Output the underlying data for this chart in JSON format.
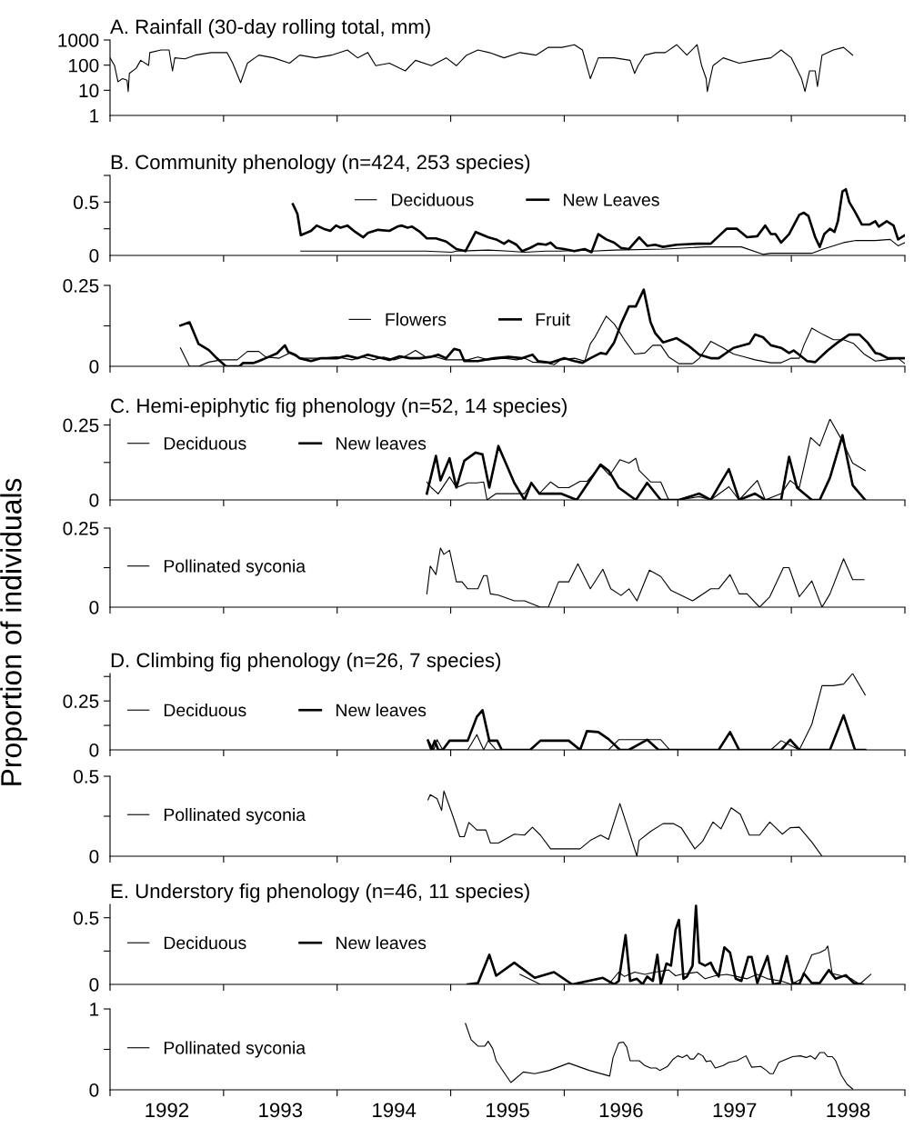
{
  "chart_data": [
    {
      "type": "line",
      "title": "A. Rainfall (30-day rolling total, mm)",
      "log": true,
      "ylim": [
        1,
        1000
      ],
      "yticks": [
        1,
        10,
        100,
        1000
      ],
      "xlim": [
        1992,
        1999
      ],
      "tick_labels": "y",
      "xticks": [
        {
          "value": 1992,
          "label": null
        },
        {
          "value": 1993,
          "label": null
        },
        {
          "value": 1994,
          "label": null
        },
        {
          "value": 1995,
          "label": null
        },
        {
          "value": 1996,
          "label": null
        },
        {
          "value": 1997,
          "label": null
        },
        {
          "value": 1998,
          "label": null
        },
        {
          "value": 1999,
          "label": null
        }
      ],
      "series": [
        {
          "color": "#000000",
          "x": [
            1992.0,
            1992.04,
            1992.07,
            1992.11,
            1992.15,
            1992.16,
            1992.17,
            1992.23,
            1992.27,
            1992.34,
            1992.35,
            1992.45,
            1992.52,
            1992.55,
            1992.57,
            1992.66,
            1992.75,
            1992.89,
            1993.03,
            1993.08,
            1993.15,
            1993.21,
            1993.31,
            1993.44,
            1993.58,
            1993.67,
            1993.81,
            1993.95,
            1994.09,
            1994.18,
            1994.27,
            1994.34,
            1994.46,
            1994.6,
            1994.69,
            1994.83,
            1994.96,
            1995.05,
            1995.14,
            1995.24,
            1995.34,
            1995.47,
            1995.61,
            1995.75,
            1995.86,
            1995.98,
            1996.09,
            1996.16,
            1996.23,
            1996.3,
            1996.44,
            1996.58,
            1996.62,
            1996.65,
            1996.71,
            1996.8,
            1996.89,
            1996.99,
            1997.08,
            1997.17,
            1997.21,
            1997.25,
            1997.26,
            1997.31,
            1997.4,
            1997.54,
            1997.68,
            1997.82,
            1997.91,
            1998.0,
            1998.09,
            1998.12,
            1998.16,
            1998.21,
            1998.23,
            1998.27,
            1998.37,
            1998.46,
            1998.54
          ],
          "values": [
            195,
            95,
            22,
            29,
            25,
            9,
            47,
            75,
            155,
            98,
            316,
            400,
            400,
            59,
            195,
            178,
            250,
            316,
            316,
            120,
            20,
            120,
            250,
            195,
            120,
            250,
            195,
            250,
            400,
            195,
            316,
            95,
            120,
            59,
            155,
            95,
            195,
            95,
            250,
            400,
            316,
            195,
            316,
            250,
            510,
            510,
            650,
            400,
            29,
            195,
            195,
            155,
            47,
            95,
            250,
            316,
            316,
            650,
            250,
            650,
            95,
            29,
            9,
            95,
            195,
            120,
            155,
            195,
            400,
            195,
            29,
            9,
            59,
            59,
            14,
            250,
            400,
            510,
            250
          ]
        }
      ]
    },
    {
      "type": "line",
      "title": "B. Community phenology (n=424, 253 species)",
      "ylim": [
        0,
        0.75
      ],
      "yticks": [
        0,
        {
          "value": 0.25,
          "label": null
        },
        0.5,
        {
          "value": 0.75,
          "label": null
        }
      ],
      "xlim": [
        1992,
        1999
      ],
      "tick_labels": "y",
      "legend": "top",
      "xticks": [
        {
          "value": 1992,
          "label": null
        },
        {
          "value": 1993,
          "label": null
        },
        {
          "value": 1994,
          "label": null
        },
        {
          "value": 1995,
          "label": null
        },
        {
          "value": 1996,
          "label": null
        },
        {
          "value": 1997,
          "label": null
        },
        {
          "value": 1998,
          "label": null
        },
        {
          "value": 1999,
          "label": null
        }
      ],
      "series": [
        {
          "name": "Deciduous",
          "color": "#000000",
          "x": [
            1993.68,
            1994.13,
            1994.59,
            1994.78,
            1995.01,
            1995.05,
            1995.33,
            1995.51,
            1995.65,
            1995.84,
            1995.97,
            1996.16,
            1996.25,
            1996.44,
            1996.89,
            1997.24,
            1997.56,
            1997.75,
            1997.82,
            1997.95,
            1998.18,
            1998.28,
            1998.37,
            1998.46,
            1998.57,
            1998.74,
            1998.87,
            1998.94,
            1999.0
          ],
          "values": [
            0.04,
            0.04,
            0.04,
            0.04,
            0.03,
            0.04,
            0.05,
            0.04,
            0.03,
            0.04,
            0.04,
            0.05,
            0.04,
            0.05,
            0.06,
            0.08,
            0.08,
            0.01,
            0.02,
            0.02,
            0.02,
            0.06,
            0.09,
            0.12,
            0.14,
            0.14,
            0.15,
            0.09,
            0.12
          ]
        },
        {
          "name": "New Leaves",
          "color": "#000000",
          "x": [
            1993.61,
            1993.65,
            1993.68,
            1993.77,
            1993.82,
            1993.88,
            1993.94,
            1993.99,
            1994.03,
            1994.09,
            1994.16,
            1994.23,
            1994.27,
            1994.36,
            1994.46,
            1994.53,
            1994.57,
            1994.62,
            1994.66,
            1994.73,
            1994.79,
            1994.87,
            1994.96,
            1995.05,
            1995.13,
            1995.22,
            1995.33,
            1995.4,
            1995.47,
            1995.51,
            1995.58,
            1995.63,
            1995.7,
            1995.77,
            1995.84,
            1995.88,
            1995.93,
            1996.0,
            1996.09,
            1996.18,
            1996.24,
            1996.3,
            1996.37,
            1996.44,
            1996.5,
            1996.57,
            1996.66,
            1996.73,
            1996.8,
            1996.87,
            1996.99,
            1997.17,
            1997.29,
            1997.36,
            1997.43,
            1997.52,
            1997.61,
            1997.7,
            1997.77,
            1997.82,
            1997.86,
            1997.91,
            1997.98,
            1998.07,
            1998.11,
            1998.15,
            1998.21,
            1998.25,
            1998.29,
            1998.34,
            1998.38,
            1998.41,
            1998.45,
            1998.48,
            1998.51,
            1998.56,
            1998.62,
            1998.69,
            1998.74,
            1998.77,
            1998.84,
            1998.9,
            1998.94,
            1999.0
          ],
          "values": [
            0.48,
            0.39,
            0.19,
            0.23,
            0.28,
            0.25,
            0.23,
            0.28,
            0.26,
            0.28,
            0.22,
            0.17,
            0.21,
            0.24,
            0.23,
            0.27,
            0.28,
            0.26,
            0.27,
            0.22,
            0.16,
            0.16,
            0.13,
            0.06,
            0.04,
            0.22,
            0.17,
            0.15,
            0.11,
            0.14,
            0.1,
            0.04,
            0.07,
            0.11,
            0.1,
            0.12,
            0.07,
            0.06,
            0.04,
            0.06,
            0.03,
            0.2,
            0.15,
            0.12,
            0.07,
            0.06,
            0.17,
            0.09,
            0.1,
            0.08,
            0.1,
            0.11,
            0.11,
            0.18,
            0.25,
            0.25,
            0.17,
            0.18,
            0.28,
            0.2,
            0.2,
            0.12,
            0.2,
            0.38,
            0.4,
            0.37,
            0.17,
            0.08,
            0.2,
            0.25,
            0.22,
            0.32,
            0.6,
            0.62,
            0.5,
            0.41,
            0.29,
            0.29,
            0.32,
            0.27,
            0.32,
            0.28,
            0.15,
            0.19
          ]
        }
      ]
    },
    {
      "type": "line",
      "ylim": [
        0,
        0.25
      ],
      "yticks": [
        0,
        {
          "value": 0.125,
          "label": null
        },
        0.25
      ],
      "xlim": [
        1992,
        1999
      ],
      "tick_labels": "y",
      "legend": "center",
      "xticks": [
        {
          "value": 1992,
          "label": null
        },
        {
          "value": 1993,
          "label": null
        },
        {
          "value": 1994,
          "label": null
        },
        {
          "value": 1995,
          "label": null
        },
        {
          "value": 1996,
          "label": null
        },
        {
          "value": 1997,
          "label": null
        },
        {
          "value": 1998,
          "label": null
        },
        {
          "value": 1999,
          "label": null
        }
      ],
      "series": [
        {
          "name": "Flowers",
          "color": "#000000",
          "x": [
            1992.62,
            1992.7,
            1992.78,
            1992.87,
            1992.98,
            1993.12,
            1993.21,
            1993.31,
            1993.37,
            1993.49,
            1993.58,
            1993.67,
            1993.77,
            1993.86,
            1994.0,
            1994.13,
            1994.23,
            1994.32,
            1994.41,
            1994.5,
            1994.59,
            1994.69,
            1994.78,
            1994.87,
            1994.96,
            1995.05,
            1995.15,
            1995.24,
            1995.33,
            1995.47,
            1995.58,
            1995.65,
            1995.72,
            1995.84,
            1995.91,
            1995.97,
            1996.09,
            1996.18,
            1996.23,
            1996.27,
            1996.37,
            1996.44,
            1996.53,
            1996.62,
            1996.71,
            1996.78,
            1996.85,
            1996.92,
            1997.01,
            1997.13,
            1997.19,
            1997.29,
            1997.4,
            1997.49,
            1997.59,
            1997.68,
            1997.82,
            1997.91,
            1998.0,
            1998.07,
            1998.11,
            1998.18,
            1998.28,
            1998.37,
            1998.46,
            1998.55,
            1998.64,
            1998.74,
            1998.83,
            1998.94,
            1999.0
          ],
          "values": [
            0.057,
            0,
            0,
            0.013,
            0.02,
            0.02,
            0.046,
            0.046,
            0.029,
            0.025,
            0.041,
            0.025,
            0.025,
            0.025,
            0.029,
            0.02,
            0.029,
            0.02,
            0.029,
            0.02,
            0.029,
            0.049,
            0.029,
            0.029,
            0.02,
            0.02,
            0.02,
            0.029,
            0.02,
            0.025,
            0.02,
            0.025,
            0.013,
            0.011,
            0.005,
            0.02,
            0.025,
            0.016,
            0.07,
            0.09,
            0.155,
            0.131,
            0.082,
            0.038,
            0.041,
            0.065,
            0.065,
            0.029,
            0.008,
            0.008,
            0.025,
            0.077,
            0.057,
            0.038,
            0.029,
            0.02,
            0.011,
            0.011,
            0.025,
            0.025,
            0.065,
            0.118,
            0.098,
            0.082,
            0.082,
            0.07,
            0.038,
            0.016,
            0.02,
            0.025,
            0.008
          ]
        },
        {
          "name": "Fruit",
          "color": "#000000",
          "x": [
            1992.62,
            1992.7,
            1992.78,
            1992.87,
            1992.94,
            1993.02,
            1993.14,
            1993.17,
            1993.26,
            1993.31,
            1993.37,
            1993.47,
            1993.54,
            1993.57,
            1993.63,
            1993.67,
            1993.77,
            1993.86,
            1994.0,
            1994.09,
            1994.18,
            1994.27,
            1994.36,
            1994.46,
            1994.55,
            1994.64,
            1994.73,
            1994.82,
            1994.89,
            1994.96,
            1995.03,
            1995.08,
            1995.12,
            1995.24,
            1995.38,
            1995.51,
            1995.63,
            1995.72,
            1995.77,
            1995.88,
            1996.0,
            1996.09,
            1996.16,
            1996.23,
            1996.32,
            1996.37,
            1996.44,
            1996.5,
            1996.57,
            1996.63,
            1996.7,
            1996.76,
            1996.8,
            1996.87,
            1996.99,
            1997.1,
            1997.19,
            1997.29,
            1997.36,
            1997.49,
            1997.63,
            1997.68,
            1997.75,
            1997.82,
            1997.91,
            1997.98,
            1998.02,
            1998.14,
            1998.21,
            1998.32,
            1998.41,
            1998.51,
            1998.6,
            1998.67,
            1998.74,
            1998.78,
            1998.85,
            1998.92,
            1999.0
          ],
          "values": [
            0.126,
            0.136,
            0.069,
            0.05,
            0.025,
            0,
            0,
            0.01,
            0.01,
            0.016,
            0.025,
            0.04,
            0.065,
            0.044,
            0.036,
            0.025,
            0.016,
            0.025,
            0.025,
            0.033,
            0.025,
            0.036,
            0.028,
            0.02,
            0.031,
            0.025,
            0.025,
            0.029,
            0.036,
            0.025,
            0.054,
            0.049,
            0.016,
            0.016,
            0.025,
            0.029,
            0.025,
            0.036,
            0.016,
            0.011,
            0.025,
            0.016,
            0.011,
            0.025,
            0.041,
            0.038,
            0.074,
            0.131,
            0.185,
            0.185,
            0.237,
            0.136,
            0.103,
            0.074,
            0.087,
            0.062,
            0.036,
            0.025,
            0.025,
            0.057,
            0.07,
            0.098,
            0.09,
            0.065,
            0.057,
            0.041,
            0.049,
            0.016,
            0.013,
            0.049,
            0.074,
            0.098,
            0.098,
            0.074,
            0.041,
            0.038,
            0.025,
            0.025,
            0.025
          ]
        }
      ]
    },
    {
      "type": "line",
      "title": "C. Hemi-epiphytic fig phenology (n=52, 14 species)",
      "ylim": [
        0,
        0.27
      ],
      "yticks": [
        0,
        {
          "value": 0.125,
          "label": null
        },
        0.25
      ],
      "xlim": [
        1992,
        1999
      ],
      "tick_labels": "y",
      "legend": "top left",
      "xticks": [
        {
          "value": 1992,
          "label": null
        },
        {
          "value": 1993,
          "label": null
        },
        {
          "value": 1994,
          "label": null
        },
        {
          "value": 1995,
          "label": null
        },
        {
          "value": 1996,
          "label": null
        },
        {
          "value": 1997,
          "label": null
        },
        {
          "value": 1998,
          "label": null
        },
        {
          "value": 1999,
          "label": null
        }
      ],
      "series": [
        {
          "name": "Deciduous",
          "color": "#000000",
          "x": [
            1994.79,
            1994.83,
            1994.89,
            1994.99,
            1995.05,
            1995.15,
            1995.23,
            1995.29,
            1995.32,
            1995.4,
            1995.65,
            1995.71,
            1995.78,
            1995.88,
            1995.95,
            1996.04,
            1996.14,
            1996.2,
            1996.32,
            1996.4,
            1996.49,
            1996.57,
            1996.63,
            1996.66,
            1996.76,
            1996.85,
            1996.92,
            1997.01,
            1997.19,
            1997.29,
            1997.45,
            1997.54,
            1997.7,
            1997.77,
            1997.91,
            1997.99,
            1998.07,
            1998.17,
            1998.25,
            1998.34,
            1998.45,
            1998.54,
            1998.65
          ],
          "values": [
            0.06,
            0.041,
            0.02,
            0.077,
            0.041,
            0.057,
            0.057,
            0.06,
            0,
            0.021,
            0.021,
            0.057,
            0.021,
            0.06,
            0.041,
            0.041,
            0.062,
            0.062,
            0.114,
            0.082,
            0.134,
            0.123,
            0.139,
            0.098,
            0.06,
            0.06,
            0,
            0,
            0.011,
            0,
            0.044,
            0,
            0.065,
            0,
            0.021,
            0.065,
            0.041,
            0.208,
            0.18,
            0.27,
            0.196,
            0.123,
            0.098
          ]
        },
        {
          "name": "New leaves",
          "color": "#000000",
          "x": [
            1994.79,
            1994.87,
            1994.91,
            1994.99,
            1995.05,
            1995.12,
            1995.22,
            1995.28,
            1995.34,
            1995.42,
            1995.56,
            1995.65,
            1995.71,
            1995.78,
            1995.97,
            1996.11,
            1996.32,
            1996.39,
            1996.48,
            1996.63,
            1996.73,
            1996.85,
            1997.01,
            1997.19,
            1997.29,
            1997.45,
            1997.54,
            1997.68,
            1997.77,
            1997.91,
            1997.98,
            1998.05,
            1998.18,
            1998.25,
            1998.34,
            1998.45,
            1998.54,
            1998.65
          ],
          "values": [
            0.021,
            0.147,
            0.065,
            0.139,
            0.041,
            0.131,
            0.158,
            0.152,
            0.041,
            0.18,
            0.057,
            0,
            0.057,
            0.021,
            0.021,
            0,
            0.118,
            0.098,
            0.041,
            0,
            0.057,
            0,
            0,
            0.021,
            0,
            0.103,
            0,
            0.021,
            0,
            0,
            0.144,
            0.041,
            0,
            0,
            0.074,
            0.216,
            0.049,
            0
          ]
        }
      ]
    },
    {
      "type": "line",
      "ylim": [
        0,
        0.25
      ],
      "yticks": [
        0,
        {
          "value": 0.125,
          "label": null
        },
        0.25
      ],
      "xlim": [
        1992,
        1999
      ],
      "tick_labels": "y",
      "legend": "left",
      "xticks": [
        {
          "value": 1992,
          "label": null
        },
        {
          "value": 1993,
          "label": null
        },
        {
          "value": 1994,
          "label": null
        },
        {
          "value": 1995,
          "label": null
        },
        {
          "value": 1996,
          "label": null
        },
        {
          "value": 1997,
          "label": null
        },
        {
          "value": 1998,
          "label": null
        },
        {
          "value": 1999,
          "label": null
        }
      ],
      "series": [
        {
          "name": "Pollinated syconia",
          "color": "#000000",
          "x": [
            1994.79,
            1994.82,
            1994.87,
            1994.91,
            1994.94,
            1994.99,
            1995.05,
            1995.1,
            1995.15,
            1995.24,
            1995.29,
            1995.32,
            1995.35,
            1995.42,
            1995.56,
            1995.65,
            1995.79,
            1995.86,
            1995.95,
            1996.04,
            1996.12,
            1996.23,
            1996.34,
            1996.41,
            1996.5,
            1996.57,
            1996.64,
            1996.75,
            1996.85,
            1996.94,
            1997.13,
            1997.29,
            1997.36,
            1997.46,
            1997.54,
            1997.61,
            1997.72,
            1997.81,
            1997.93,
            1997.98,
            1998.07,
            1998.18,
            1998.27,
            1998.34,
            1998.46,
            1998.54,
            1998.64
          ],
          "values": [
            0.042,
            0.13,
            0.103,
            0.187,
            0.167,
            0.18,
            0.08,
            0.08,
            0.058,
            0.058,
            0.1,
            0.1,
            0.042,
            0.038,
            0.02,
            0.02,
            0,
            0,
            0.08,
            0.08,
            0.137,
            0.058,
            0.12,
            0.058,
            0.037,
            0.058,
            0.02,
            0.117,
            0.097,
            0.053,
            0.02,
            0.058,
            0.058,
            0.103,
            0.042,
            0.042,
            0,
            0.033,
            0.125,
            0.125,
            0.033,
            0.083,
            0,
            0.042,
            0.153,
            0.087,
            0.087
          ]
        }
      ]
    },
    {
      "type": "line",
      "title": "D. Climbing fig phenology (n=26, 7 species)",
      "ylabel": "Proportion of individuals",
      "ylim": [
        0,
        0.39
      ],
      "yticks": [
        0,
        {
          "value": 0.125,
          "label": null
        },
        0.25,
        {
          "value": 0.375,
          "label": null
        }
      ],
      "xlim": [
        1992,
        1999
      ],
      "tick_labels": "y",
      "legend": "left",
      "xticks": [
        {
          "value": 1992,
          "label": null
        },
        {
          "value": 1993,
          "label": null
        },
        {
          "value": 1994,
          "label": null
        },
        {
          "value": 1995,
          "label": null
        },
        {
          "value": 1996,
          "label": null
        },
        {
          "value": 1997,
          "label": null
        },
        {
          "value": 1998,
          "label": null
        },
        {
          "value": 1999,
          "label": null
        }
      ],
      "series": [
        {
          "name": "Deciduous",
          "color": "#000000",
          "x": [
            1994.8,
            1994.85,
            1994.88,
            1994.93,
            1995.15,
            1995.23,
            1995.29,
            1995.33,
            1995.4,
            1995.7,
            1995.79,
            1996.04,
            1996.14,
            1996.39,
            1996.48,
            1996.85,
            1996.93,
            1997.82,
            1997.91,
            1998.07,
            1998.18,
            1998.27,
            1998.37,
            1998.46,
            1998.54,
            1998.65
          ],
          "values": [
            0.052,
            0,
            0.052,
            0,
            0,
            0.078,
            0,
            0.047,
            0,
            0,
            0.047,
            0.047,
            0,
            0,
            0.052,
            0.052,
            0,
            0,
            0.047,
            0,
            0.13,
            0.328,
            0.328,
            0.336,
            0.39,
            0.281
          ]
        },
        {
          "name": "New leaves",
          "color": "#000000",
          "x": [
            1994.8,
            1994.83,
            1994.86,
            1994.89,
            1994.93,
            1994.99,
            1995.15,
            1995.23,
            1995.28,
            1995.34,
            1995.41,
            1995.45,
            1995.7,
            1995.79,
            1996.04,
            1996.14,
            1996.2,
            1996.3,
            1996.39,
            1996.49,
            1996.57,
            1996.73,
            1996.83,
            1997.36,
            1997.46,
            1997.54,
            1997.91,
            1997.99,
            1998.07,
            1998.34,
            1998.46,
            1998.56,
            1998.65
          ],
          "values": [
            0.047,
            0,
            0.047,
            0,
            0,
            0.047,
            0.047,
            0.169,
            0.203,
            0.047,
            0.047,
            0,
            0,
            0.047,
            0.047,
            0,
            0.096,
            0.091,
            0.055,
            0,
            0,
            0.052,
            0,
            0,
            0.091,
            0,
            0,
            0.052,
            0,
            0,
            0.177,
            0,
            0
          ]
        }
      ]
    },
    {
      "type": "line",
      "ylim": [
        0,
        0.5
      ],
      "yticks": [
        0,
        {
          "value": 0.25,
          "label": null
        },
        0.5
      ],
      "xlim": [
        1992,
        1999
      ],
      "tick_labels": "y",
      "legend": "left",
      "xticks": [
        {
          "value": 1992,
          "label": null
        },
        {
          "value": 1993,
          "label": null
        },
        {
          "value": 1994,
          "label": null
        },
        {
          "value": 1995,
          "label": null
        },
        {
          "value": 1996,
          "label": null
        },
        {
          "value": 1997,
          "label": null
        },
        {
          "value": 1998,
          "label": null
        },
        {
          "value": 1999,
          "label": null
        }
      ],
      "series": [
        {
          "name": "Pollinated syconia",
          "color": "#000000",
          "x": [
            1994.8,
            1994.82,
            1994.88,
            1994.92,
            1994.94,
            1995.01,
            1995.08,
            1995.12,
            1995.16,
            1995.23,
            1995.31,
            1995.35,
            1995.42,
            1995.56,
            1995.65,
            1995.72,
            1995.79,
            1995.88,
            1996.14,
            1996.23,
            1996.32,
            1996.39,
            1996.49,
            1996.64,
            1996.66,
            1996.76,
            1996.87,
            1996.96,
            1997.03,
            1997.15,
            1997.22,
            1997.31,
            1997.38,
            1997.47,
            1997.55,
            1997.63,
            1997.72,
            1997.81,
            1997.92,
            1997.99,
            1998.07,
            1998.18,
            1998.27
          ],
          "values": [
            0.352,
            0.385,
            0.359,
            0.286,
            0.408,
            0.27,
            0.122,
            0.122,
            0.211,
            0.164,
            0.164,
            0.082,
            0.082,
            0.138,
            0.132,
            0.181,
            0.132,
            0.046,
            0.046,
            0.099,
            0.132,
            0.105,
            0.329,
            0,
            0.099,
            0.155,
            0.204,
            0.204,
            0.178,
            0.046,
            0.095,
            0.214,
            0.171,
            0.303,
            0.263,
            0.132,
            0.132,
            0.214,
            0.138,
            0.178,
            0.181,
            0.089,
            0
          ]
        }
      ]
    },
    {
      "type": "line",
      "title": "E. Understory fig phenology (n=46, 11 species)",
      "ylim": [
        0,
        0.6
      ],
      "yticks": [
        0,
        {
          "value": 0.25,
          "label": null
        },
        0.5
      ],
      "xlim": [
        1992,
        1999
      ],
      "tick_labels": "y",
      "legend": "left",
      "xticks": [
        {
          "value": 1992,
          "label": null
        },
        {
          "value": 1993,
          "label": null
        },
        {
          "value": 1994,
          "label": null
        },
        {
          "value": 1995,
          "label": null
        },
        {
          "value": 1996,
          "label": null
        },
        {
          "value": 1997,
          "label": null
        },
        {
          "value": 1998,
          "label": null
        },
        {
          "value": 1999,
          "label": null
        }
      ],
      "series": [
        {
          "name": "Deciduous",
          "color": "#000000",
          "x": [
            1995.61,
            1995.79,
            1996.39,
            1996.48,
            1996.53,
            1996.62,
            1996.71,
            1996.8,
            1996.92,
            1996.98,
            1997.03,
            1997.17,
            1997.24,
            1997.33,
            1997.43,
            1997.52,
            1997.61,
            1997.7,
            1997.79,
            1997.91,
            1998.0,
            1998.09,
            1998.18,
            1998.25,
            1998.3,
            1998.32,
            1998.36,
            1998.44,
            1998.53,
            1998.6,
            1998.7
          ],
          "values": [
            0.075,
            0,
            0,
            0.092,
            0.059,
            0.092,
            0.075,
            0.092,
            0.108,
            0.065,
            0.075,
            0.092,
            0.042,
            0.065,
            0.075,
            0.059,
            0.042,
            0.075,
            0.042,
            0.026,
            0,
            0.042,
            0.222,
            0.239,
            0.261,
            0.288,
            0.082,
            0.065,
            0.042,
            0,
            0.075
          ]
        },
        {
          "name": "New leaves",
          "color": "#000000",
          "x": [
            1995.15,
            1995.24,
            1995.34,
            1995.4,
            1995.56,
            1995.74,
            1995.91,
            1996.07,
            1996.34,
            1996.44,
            1996.48,
            1996.54,
            1996.58,
            1996.64,
            1996.69,
            1996.73,
            1996.78,
            1996.82,
            1996.85,
            1996.9,
            1996.94,
            1996.98,
            1997.01,
            1997.05,
            1997.08,
            1997.13,
            1997.16,
            1997.19,
            1997.24,
            1997.29,
            1997.32,
            1997.36,
            1997.41,
            1997.46,
            1997.51,
            1997.56,
            1997.62,
            1997.65,
            1997.7,
            1997.79,
            1997.84,
            1997.9,
            1997.96,
            1998.01,
            1998.07,
            1998.11,
            1998.18,
            1998.25,
            1998.33,
            1998.39,
            1998.48,
            1998.55,
            1998.63
          ],
          "values": [
            0,
            0.01,
            0.222,
            0.065,
            0.163,
            0.049,
            0.092,
            0,
            0.049,
            0,
            0.026,
            0.369,
            0.026,
            0.042,
            0,
            0.059,
            0.026,
            0.222,
            0,
            0.157,
            0.141,
            0.408,
            0.484,
            0.042,
            0.059,
            0.141,
            0.59,
            0.163,
            0.141,
            0.163,
            0.108,
            0.059,
            0.278,
            0.239,
            0.042,
            0.026,
            0.206,
            0.206,
            0.01,
            0.212,
            0,
            0.01,
            0.212,
            0.01,
            0,
            0.082,
            0.01,
            0.01,
            0.108,
            0.042,
            0.069,
            0.01,
            0
          ]
        }
      ]
    },
    {
      "type": "line",
      "ylim": [
        0,
        1
      ],
      "yticks": [
        0,
        {
          "value": 0.5,
          "label": null
        },
        1
      ],
      "xlim": [
        1992,
        1999
      ],
      "legend": "left",
      "xticks": [
        {
          "value": 1992,
          "label": null
        },
        {
          "value": 1993,
          "label": null
        },
        {
          "value": 1994,
          "label": null
        },
        {
          "value": 1995,
          "label": null
        },
        {
          "value": 1996,
          "label": null
        },
        {
          "value": 1997,
          "label": null
        },
        {
          "value": 1998,
          "label": null
        },
        {
          "value": 1999,
          "label": null
        },
        {
          "value": 1992.5,
          "label": "1992"
        },
        {
          "value": 1993.5,
          "label": "1993"
        },
        {
          "value": 1994.5,
          "label": "1994"
        },
        {
          "value": 1995.5,
          "label": "1995"
        },
        {
          "value": 1996.5,
          "label": "1996"
        },
        {
          "value": 1997.5,
          "label": "1997"
        },
        {
          "value": 1998.5,
          "label": "1998"
        }
      ],
      "series": [
        {
          "name": "Pollinated syconia",
          "color": "#000000",
          "x": [
            1995.13,
            1995.18,
            1995.24,
            1995.3,
            1995.33,
            1995.37,
            1995.4,
            1995.53,
            1995.64,
            1995.74,
            1995.87,
            1996.04,
            1996.22,
            1996.4,
            1996.43,
            1996.48,
            1996.52,
            1996.55,
            1996.58,
            1996.66,
            1996.71,
            1996.76,
            1996.81,
            1996.84,
            1996.91,
            1996.96,
            1997.0,
            1997.04,
            1997.08,
            1997.11,
            1997.14,
            1997.18,
            1997.22,
            1997.25,
            1997.29,
            1997.33,
            1997.4,
            1997.45,
            1997.52,
            1997.6,
            1997.65,
            1997.73,
            1997.78,
            1997.81,
            1997.84,
            1997.89,
            1998.01,
            1998.08,
            1998.13,
            1998.17,
            1998.21,
            1998.25,
            1998.29,
            1998.32,
            1998.36,
            1998.39,
            1998.44,
            1998.49,
            1998.54
          ],
          "values": [
            0.82,
            0.62,
            0.54,
            0.54,
            0.6,
            0.51,
            0.36,
            0.09,
            0.22,
            0.2,
            0.24,
            0.33,
            0.24,
            0.17,
            0.4,
            0.58,
            0.59,
            0.53,
            0.36,
            0.36,
            0.3,
            0.27,
            0.27,
            0.24,
            0.29,
            0.38,
            0.42,
            0.4,
            0.43,
            0.38,
            0.38,
            0.45,
            0.42,
            0.35,
            0.36,
            0.27,
            0.3,
            0.34,
            0.36,
            0.42,
            0.28,
            0.29,
            0.24,
            0.2,
            0.2,
            0.34,
            0.41,
            0.42,
            0.4,
            0.42,
            0.38,
            0.46,
            0.46,
            0.41,
            0.41,
            0.36,
            0.18,
            0.07,
            0.01
          ]
        }
      ]
    }
  ]
}
